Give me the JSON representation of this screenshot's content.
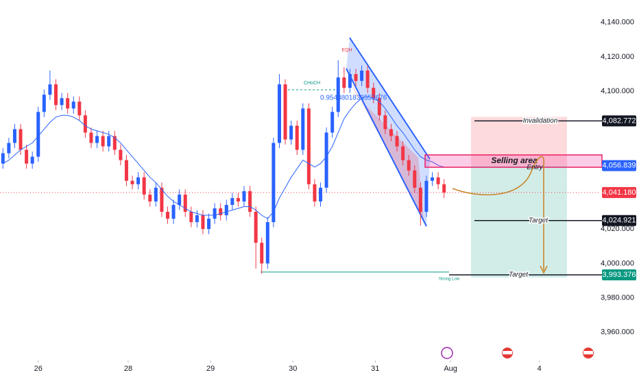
{
  "chart_data": {
    "type": "candlestick",
    "up_color": "#2962ff",
    "down_color": "#f23645",
    "ma_color": "#2962ff",
    "open": [
      4058,
      4064,
      4070,
      4078,
      4066,
      4058,
      4062,
      4088,
      4098,
      4104,
      4092,
      4096,
      4090,
      4094,
      4086,
      4076,
      4070,
      4074,
      4068,
      4074,
      4066,
      4060,
      4048,
      4046,
      4050,
      4040,
      4036,
      4044,
      4030,
      4026,
      4034,
      4040,
      4030,
      4024,
      4028,
      4020,
      4026,
      4032,
      4028,
      4034,
      4038,
      4036,
      4042,
      4030,
      4012,
      4000,
      4024,
      4070,
      4104,
      4072,
      4080,
      4066,
      4090,
      4046,
      4036,
      4044,
      4076,
      4088,
      4108,
      4102,
      4110,
      4106,
      4112,
      4102,
      4096,
      4086,
      4078,
      4074,
      4068,
      4060,
      4054,
      4044,
      4030,
      4048,
      4050,
      4046
    ],
    "high": [
      4067,
      4073,
      4081,
      4081,
      4069,
      4065,
      4091,
      4101,
      4112,
      4107,
      4099,
      4099,
      4097,
      4097,
      4089,
      4079,
      4077,
      4077,
      4077,
      4077,
      4069,
      4063,
      4051,
      4053,
      4053,
      4043,
      4047,
      4047,
      4033,
      4037,
      4043,
      4043,
      4033,
      4031,
      4031,
      4029,
      4035,
      4035,
      4037,
      4041,
      4041,
      4045,
      4045,
      4033,
      4015,
      4027,
      4073,
      4110,
      4107,
      4083,
      4083,
      4093,
      4093,
      4049,
      4047,
      4079,
      4091,
      4118,
      4114,
      4113,
      4113,
      4115,
      4115,
      4105,
      4099,
      4089,
      4081,
      4077,
      4071,
      4063,
      4057,
      4047,
      4051,
      4053,
      4053,
      4049
    ],
    "low": [
      4055,
      4061,
      4067,
      4063,
      4055,
      4055,
      4059,
      4085,
      4095,
      4089,
      4089,
      4087,
      4087,
      4083,
      4073,
      4067,
      4067,
      4065,
      4065,
      4063,
      4057,
      4045,
      4043,
      4043,
      4037,
      4033,
      4033,
      4027,
      4023,
      4023,
      4031,
      4027,
      4021,
      4021,
      4017,
      4017,
      4023,
      4025,
      4025,
      4031,
      4033,
      4033,
      4027,
      3997,
      3994,
      3997,
      4021,
      4067,
      4069,
      4069,
      4063,
      4063,
      4043,
      4033,
      4033,
      4041,
      4073,
      4085,
      4099,
      4099,
      4103,
      4103,
      4099,
      4093,
      4083,
      4075,
      4071,
      4065,
      4057,
      4051,
      4041,
      4022,
      4027,
      4045,
      4043,
      4038
    ],
    "close": [
      4064,
      4070,
      4078,
      4066,
      4058,
      4062,
      4088,
      4098,
      4104,
      4092,
      4096,
      4090,
      4094,
      4086,
      4076,
      4070,
      4074,
      4068,
      4074,
      4066,
      4060,
      4048,
      4046,
      4050,
      4040,
      4036,
      4044,
      4030,
      4026,
      4034,
      4040,
      4030,
      4024,
      4028,
      4020,
      4026,
      4032,
      4028,
      4034,
      4038,
      4036,
      4042,
      4030,
      4012,
      4000,
      4024,
      4070,
      4104,
      4072,
      4080,
      4066,
      4090,
      4046,
      4036,
      4044,
      4076,
      4088,
      4108,
      4102,
      4110,
      4106,
      4112,
      4102,
      4096,
      4086,
      4078,
      4074,
      4068,
      4060,
      4054,
      4044,
      4030,
      4048,
      4050,
      4046,
      4041.18
    ],
    "ma": [
      4058,
      4060,
      4063,
      4066,
      4068,
      4070,
      4074,
      4078,
      4082,
      4085,
      4086,
      4086,
      4085,
      4083,
      4080,
      4078,
      4077,
      4076,
      4075,
      4073,
      4070,
      4066,
      4062,
      4058,
      4054,
      4050,
      4047,
      4043,
      4039,
      4036,
      4034,
      4032,
      4030,
      4029,
      4028,
      4028,
      4028,
      4029,
      4030,
      4031,
      4032,
      4033,
      4033,
      4031,
      4028,
      4026,
      4030,
      4038,
      4044,
      4050,
      4055,
      4060,
      4058,
      4056,
      4058,
      4062,
      4068,
      4076,
      4084,
      4089,
      4093,
      4096,
      4097,
      4096,
      4094,
      4090,
      4085,
      4080,
      4076,
      4071,
      4066,
      4062,
      4060,
      4059,
      4057,
      4056
    ],
    "xlim": [
      -0.5,
      101.5
    ],
    "xticks": [
      {
        "value": 6,
        "label": "26"
      },
      {
        "value": 21.3,
        "label": "28"
      },
      {
        "value": 35.3,
        "label": "29"
      },
      {
        "value": 49.3,
        "label": "30"
      },
      {
        "value": 63.3,
        "label": "31"
      },
      {
        "value": 76.1,
        "label": "Aug"
      },
      {
        "value": 91.2,
        "label": "4"
      }
    ],
    "ylim": [
      3946,
      4153
    ],
    "yticks": [
      {
        "value": 4140,
        "label": "4,140.000"
      },
      {
        "value": 4120,
        "label": "4,120.000"
      },
      {
        "value": 4100,
        "label": "4,100.000"
      },
      {
        "value": 4020,
        "label": "4,020.000"
      },
      {
        "value": 4000,
        "label": "4,000.000"
      },
      {
        "value": 3980,
        "label": "3,980.000"
      },
      {
        "value": 3960,
        "label": "3,960.000"
      }
    ],
    "levels": [
      {
        "name": "Invalidation",
        "value": 4082.772,
        "label": "4,082.772",
        "color": "#131722"
      },
      {
        "name": "Entry",
        "value": 4056.839,
        "label": "4,056.839",
        "color": "#2962ff"
      },
      {
        "name": "Target",
        "value": 4024.921,
        "label": "4,024.921",
        "color": "#131722"
      },
      {
        "name": "Target",
        "value": 3993.376,
        "label": "3,993.376",
        "color": "#089981"
      }
    ],
    "last_price": {
      "value": 4041.18,
      "label": "4,041.180",
      "color": "#f23645"
    },
    "strong_low": {
      "text": "Strong Low",
      "value": 3995
    },
    "annotations": {
      "selling_area": "Selling area",
      "choch": "CHoCH",
      "eqh": "EQH",
      "fib": "0.9543801833552676"
    }
  }
}
